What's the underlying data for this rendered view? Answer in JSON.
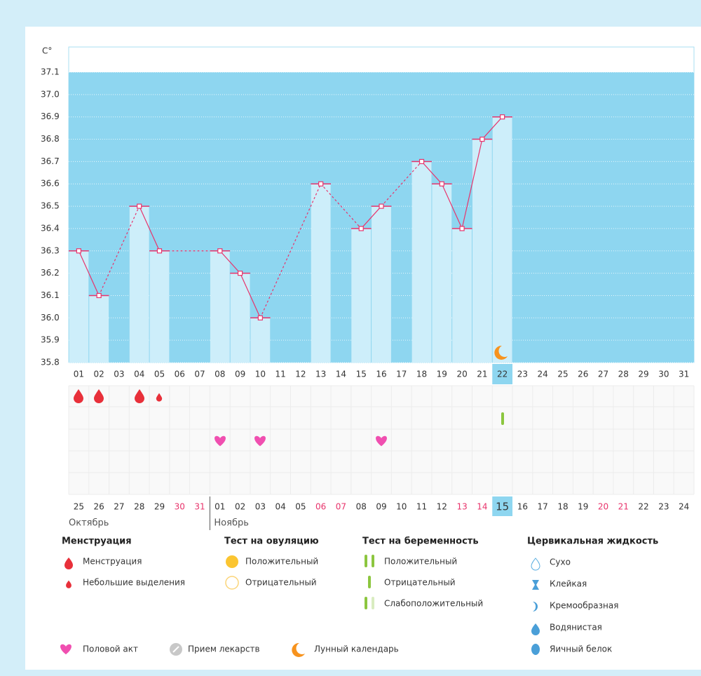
{
  "chart_data": {
    "type": "line",
    "y_label": "C°",
    "categories": [
      "01",
      "02",
      "03",
      "04",
      "05",
      "06",
      "07",
      "08",
      "09",
      "10",
      "11",
      "12",
      "13",
      "14",
      "15",
      "16",
      "17",
      "18",
      "19",
      "20",
      "21",
      "22",
      "23",
      "24",
      "25",
      "26",
      "27",
      "28",
      "29",
      "30",
      "31"
    ],
    "values": [
      36.3,
      36.1,
      null,
      36.5,
      36.3,
      null,
      null,
      36.3,
      36.2,
      36.0,
      null,
      null,
      36.6,
      null,
      36.4,
      36.5,
      null,
      36.7,
      36.6,
      36.4,
      36.8,
      36.9,
      null,
      null,
      null,
      null,
      null,
      null,
      null,
      null,
      null
    ],
    "ylim": [
      35.8,
      37.1
    ],
    "yticks": [
      37.1,
      {
        "value": 37,
        "label": "37.0"
      },
      36.9,
      36.8,
      36.7,
      36.6,
      36.5,
      36.4,
      36.3,
      36.2,
      36.1,
      {
        "value": 36,
        "label": "36.0"
      },
      35.9,
      35.8
    ],
    "grid": true,
    "color": "#e8346c",
    "bar_color": "#cdeefa",
    "background_color": "#8ed6f0",
    "highlight_index": 21
  },
  "calendar": {
    "dates": [
      "25",
      "26",
      "27",
      "28",
      "29",
      "30",
      "31",
      "01",
      "02",
      "03",
      "04",
      "05",
      "06",
      "07",
      "08",
      "09",
      "10",
      "11",
      "12",
      "13",
      "14",
      "15",
      "16",
      "17",
      "18",
      "19",
      "20",
      "21",
      "22",
      "23",
      "24"
    ],
    "weekend_indices": [
      5,
      6,
      12,
      13,
      19,
      20,
      26,
      27
    ],
    "weekend_color": "#e8336b",
    "highlight_index": 21,
    "months": [
      "Октябрь",
      "Ноябрь"
    ]
  },
  "legend": {
    "columns": [
      {
        "title": "Менструация",
        "items": [
          "Менструация",
          "Небольшие выделения"
        ]
      },
      {
        "title": "Тест на овуляцию",
        "items": [
          "Положительный",
          "Отрицательный"
        ]
      },
      {
        "title": "Тест на беременность",
        "items": [
          "Положительный",
          "Отрицательный",
          "Слабоположительный"
        ]
      },
      {
        "title": "Цервикальная жидкость",
        "items": [
          "Сухо",
          "Клейкая",
          "Кремообразная",
          "Водянистая",
          "Яичный белок"
        ]
      }
    ],
    "bottom": [
      "Половой акт",
      "Прием лекарств",
      "Лунный календарь"
    ]
  }
}
